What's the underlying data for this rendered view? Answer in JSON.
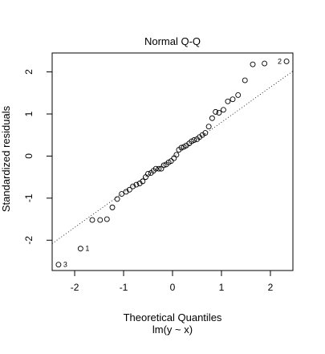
{
  "chart_data": {
    "type": "scatter",
    "title": "Normal Q-Q",
    "xlabel": "Theoretical Quantiles",
    "subtitle": "lm(y ~ x)",
    "ylabel": "Standardized residuals",
    "xlim": [
      -2.46,
      2.46
    ],
    "ylim": [
      -2.72,
      2.45
    ],
    "x_ticks": [
      -2,
      -1,
      0,
      1,
      2
    ],
    "y_ticks": [
      -2,
      -1,
      0,
      1,
      2
    ],
    "x_tick_labels": [
      "-2",
      "-1",
      "0",
      "1",
      "2"
    ],
    "y_tick_labels": [
      "-2",
      "-1",
      "0",
      "1",
      "2"
    ],
    "grid": false,
    "point_marker": "open-circle",
    "reference_line": {
      "style": "dotted",
      "points": [
        [
          -2.46,
          -2.08
        ],
        [
          2.46,
          2.02
        ]
      ]
    },
    "points": [
      [
        -2.33,
        -2.58
      ],
      [
        -1.88,
        -2.2
      ],
      [
        -1.64,
        -1.52
      ],
      [
        -1.48,
        -1.52
      ],
      [
        -1.34,
        -1.5
      ],
      [
        -1.23,
        -1.22
      ],
      [
        -1.13,
        -1.02
      ],
      [
        -1.04,
        -0.9
      ],
      [
        -0.95,
        -0.85
      ],
      [
        -0.88,
        -0.8
      ],
      [
        -0.81,
        -0.72
      ],
      [
        -0.74,
        -0.68
      ],
      [
        -0.67,
        -0.65
      ],
      [
        -0.61,
        -0.6
      ],
      [
        -0.55,
        -0.5
      ],
      [
        -0.5,
        -0.42
      ],
      [
        -0.44,
        -0.4
      ],
      [
        -0.39,
        -0.35
      ],
      [
        -0.34,
        -0.3
      ],
      [
        -0.28,
        -0.3
      ],
      [
        -0.23,
        -0.3
      ],
      [
        -0.18,
        -0.22
      ],
      [
        -0.13,
        -0.2
      ],
      [
        -0.08,
        -0.15
      ],
      [
        -0.03,
        -0.12
      ],
      [
        0.03,
        -0.05
      ],
      [
        0.08,
        0.03
      ],
      [
        0.13,
        0.15
      ],
      [
        0.18,
        0.2
      ],
      [
        0.23,
        0.22
      ],
      [
        0.28,
        0.25
      ],
      [
        0.34,
        0.3
      ],
      [
        0.39,
        0.35
      ],
      [
        0.44,
        0.38
      ],
      [
        0.5,
        0.4
      ],
      [
        0.55,
        0.45
      ],
      [
        0.61,
        0.5
      ],
      [
        0.67,
        0.55
      ],
      [
        0.74,
        0.7
      ],
      [
        0.81,
        0.9
      ],
      [
        0.88,
        1.05
      ],
      [
        0.95,
        1.03
      ],
      [
        1.04,
        1.1
      ],
      [
        1.13,
        1.3
      ],
      [
        1.23,
        1.35
      ],
      [
        1.34,
        1.45
      ],
      [
        1.48,
        1.8
      ],
      [
        1.64,
        2.18
      ],
      [
        1.88,
        2.2
      ],
      [
        2.33,
        2.25
      ]
    ],
    "point_labels": [
      {
        "text": "3",
        "point_index": 0
      },
      {
        "text": "1",
        "point_index": 1
      },
      {
        "text": "2",
        "point_index": 49
      }
    ]
  }
}
